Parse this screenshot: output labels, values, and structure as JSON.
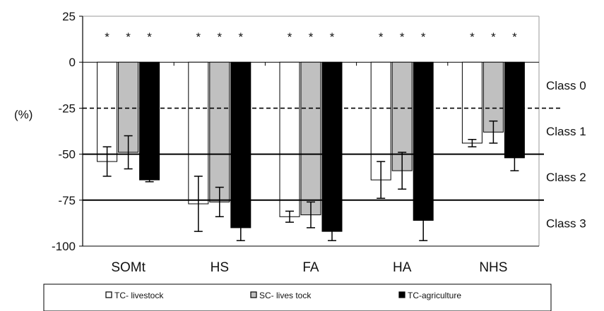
{
  "chart_data": {
    "type": "bar",
    "ylabel": "(%)",
    "ylim": [
      -100,
      25
    ],
    "yticks": [
      25,
      0,
      -25,
      -50,
      -75,
      -100
    ],
    "categories": [
      "SOMt",
      "HS",
      "FA",
      "HA",
      "NHS"
    ],
    "series": [
      {
        "name": "TC- livestock",
        "color": "#ffffff",
        "values": [
          -54,
          -77,
          -84,
          -64,
          -44
        ],
        "err": [
          8,
          15,
          3,
          10,
          2
        ]
      },
      {
        "name": "SC- lives tock",
        "color": "#c0c0c0",
        "values": [
          -49,
          -76,
          -83,
          -59,
          -38
        ],
        "err": [
          9,
          8,
          7,
          10,
          6
        ]
      },
      {
        "name": "TC-agriculture",
        "color": "#000000",
        "values": [
          -64,
          -90,
          -92,
          -86,
          -52
        ],
        "err": [
          1,
          7,
          5,
          11,
          7
        ]
      }
    ],
    "significance_marker": "*",
    "thresholds": [
      {
        "value": -25,
        "style": "dashed"
      },
      {
        "value": -50,
        "style": "solid"
      },
      {
        "value": -75,
        "style": "solid"
      }
    ],
    "class_labels": [
      "Class 0",
      "Class 1",
      "Class 2",
      "Class 3"
    ],
    "legend_position": "bottom"
  }
}
